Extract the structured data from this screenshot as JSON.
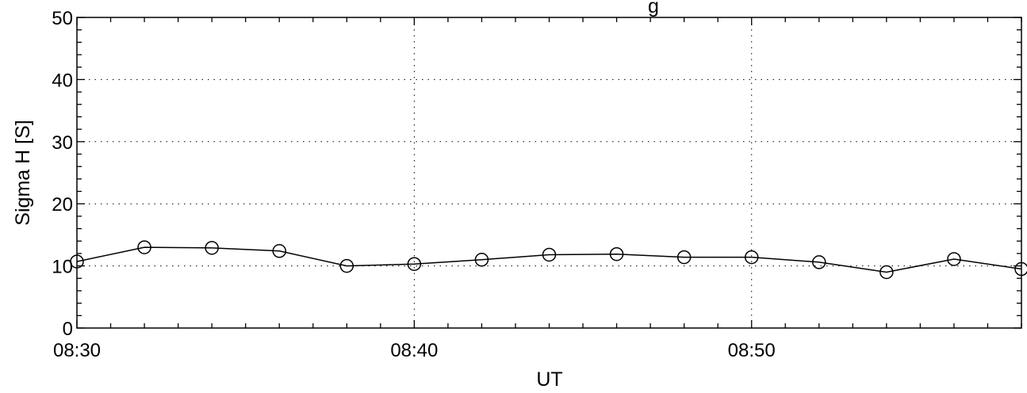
{
  "chart_data": {
    "type": "line",
    "title": "",
    "title_partial_visible": "g",
    "xlabel": "UT",
    "ylabel": "Sigma H [S]",
    "xlim": [
      "08:30",
      "08:58"
    ],
    "ylim": [
      0,
      50
    ],
    "x_ticks": [
      "08:30",
      "08:40",
      "08:50"
    ],
    "y_ticks": [
      "0",
      "10",
      "20",
      "30",
      "40",
      "50"
    ],
    "grid": true,
    "marker": "open-circle",
    "line_color": "#000000",
    "series": [
      {
        "x": [
          "08:30",
          "08:32",
          "08:34",
          "08:36",
          "08:38",
          "08:40",
          "08:42",
          "08:44",
          "08:46",
          "08:48",
          "08:50",
          "08:52",
          "08:54",
          "08:56",
          "08:58"
        ],
        "values": [
          10.7,
          13.0,
          12.9,
          12.4,
          10.0,
          10.3,
          11.0,
          11.8,
          11.9,
          11.4,
          11.4,
          10.6,
          9.0,
          11.1,
          9.5
        ]
      }
    ]
  }
}
